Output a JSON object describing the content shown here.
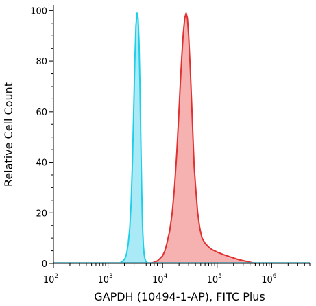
{
  "chart_data": {
    "type": "area",
    "xlabel": "GAPDH (10494-1-AP), FITC Plus",
    "ylabel": "Relative Cell Count",
    "x_scale": "log",
    "xlim": [
      100,
      5000000
    ],
    "ylim": [
      0,
      102
    ],
    "grid": false,
    "x_ticks": [
      {
        "base": "10",
        "exp": "2",
        "value": 100
      },
      {
        "base": "10",
        "exp": "3",
        "value": 1000
      },
      {
        "base": "10",
        "exp": "4",
        "value": 10000
      },
      {
        "base": "10",
        "exp": "5",
        "value": 100000
      },
      {
        "base": "10",
        "exp": "6",
        "value": 1000000
      }
    ],
    "y_ticks": [
      "0",
      "20",
      "40",
      "60",
      "80",
      "100"
    ],
    "series": [
      {
        "color": "#1ecfe8",
        "fill": "#9be6f4",
        "x": [
          1700,
          1900,
          2050,
          2200,
          2350,
          2500,
          2650,
          2800,
          2950,
          3100,
          3250,
          3400,
          3550,
          3700,
          3850,
          4000,
          4150,
          4300,
          4450,
          4600,
          4750,
          4900,
          5100,
          5300
        ],
        "y": [
          0.5,
          1,
          2,
          4,
          8,
          14,
          24,
          40,
          60,
          80,
          94,
          99,
          97,
          88,
          70,
          48,
          28,
          14,
          7,
          3.5,
          1.8,
          1,
          0.5,
          0
        ]
      },
      {
        "color": "#e03030",
        "fill": "#f5a3a3",
        "x": [
          6000,
          7000,
          8000,
          9000,
          10000,
          11000,
          12000,
          13500,
          15000,
          16500,
          18000,
          19500,
          21000,
          22500,
          24000,
          25500,
          27000,
          28500,
          30000,
          32000,
          34000,
          36000,
          38000,
          41000,
          44000,
          48000,
          53000,
          60000,
          70000,
          80000,
          100000,
          130000,
          180000,
          250000,
          350000,
          500000
        ],
        "y": [
          0,
          0.5,
          1,
          2,
          3,
          5,
          8,
          13,
          20,
          30,
          42,
          56,
          70,
          82,
          91,
          97,
          99,
          97,
          90,
          78,
          64,
          50,
          38,
          28,
          20,
          14,
          10,
          8,
          6.5,
          5.5,
          4.5,
          3.5,
          2.5,
          1.5,
          0.8,
          0
        ]
      }
    ]
  }
}
